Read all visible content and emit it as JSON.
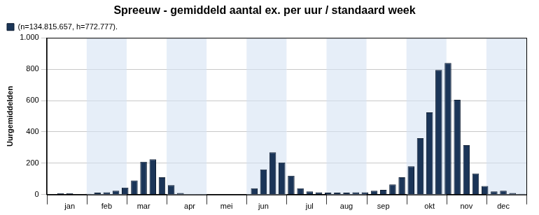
{
  "chart_data": {
    "type": "bar",
    "title": "Spreeuw - gemiddeld aantal ex. per uur / standaard week",
    "y_label": "Uurgemiddelden",
    "categories": [
      null,
      null,
      "jan",
      null,
      null,
      null,
      "feb",
      null,
      null,
      null,
      "mar",
      null,
      null,
      null,
      null,
      "apr",
      null,
      null,
      null,
      "mei",
      null,
      null,
      null,
      "jun",
      null,
      null,
      null,
      null,
      "jul",
      null,
      null,
      null,
      "aug",
      null,
      null,
      null,
      "sep",
      null,
      null,
      null,
      null,
      "okt",
      null,
      null,
      null,
      "nov",
      null,
      null,
      null,
      "dec",
      null,
      null
    ],
    "series": [
      {
        "name": "(n=134.815.657, h=772.777).",
        "color": "#1b3558",
        "values": [
          4,
          8,
          8,
          4,
          5,
          12,
          15,
          25,
          45,
          90,
          210,
          225,
          110,
          60,
          10,
          2,
          1,
          0,
          0,
          0,
          1,
          3,
          40,
          160,
          270,
          205,
          120,
          40,
          20,
          15,
          12,
          12,
          12,
          15,
          15,
          25,
          30,
          65,
          110,
          180,
          360,
          525,
          795,
          840,
          605,
          315,
          135,
          55,
          20,
          25,
          10,
          5
        ]
      }
    ],
    "ylim": [
      0,
      1000
    ],
    "yticks": [
      0,
      200,
      400,
      600,
      800,
      {
        "value": 1000,
        "label": "1.000"
      }
    ],
    "grid": true,
    "legend": "top-left"
  }
}
